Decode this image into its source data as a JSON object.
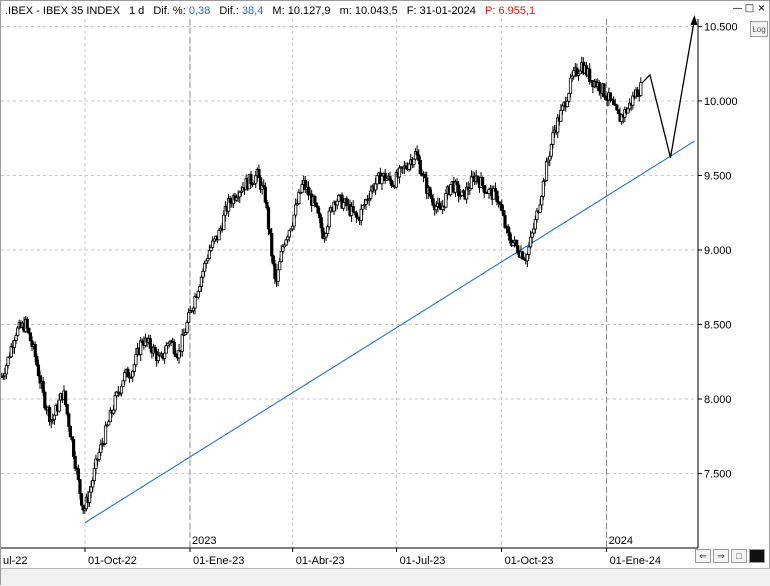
{
  "header": {
    "symbol": ".IBEX - IBEX 35 INDEX",
    "interval": "1 d",
    "dif_pct_label": "Dif. %:",
    "dif_pct_value": "0,38",
    "dif_label": "Dif.:",
    "dif_value": "38,4",
    "max_label": "M:",
    "max_value": "10.127,9",
    "min_label": "m:",
    "min_value": "10.043,5",
    "date_label": "F:",
    "date_value": "31-01-2024",
    "p_label": "P:",
    "p_value": "6.955,1"
  },
  "buttons": {
    "log_label": "Log",
    "minimize_icon": "minimize-icon",
    "maximize_icon": "maximize-icon",
    "close_icon": "close-icon"
  },
  "colors": {
    "accent_blue": "#2a6fd6",
    "trendline": "#1f6fd2",
    "price_red": "#d11a1a"
  },
  "chart_data": {
    "type": "candlestick",
    "title": ".IBEX - IBEX 35 INDEX",
    "ylim": [
      7000,
      10550
    ],
    "y_ticks": [
      "7.500",
      "8.000",
      "8.500",
      "9.000",
      "9.500",
      "10.000",
      "10.500"
    ],
    "x_tick_labels": [
      "ul-22",
      "01-Oct-22",
      "01-Ene-23",
      "01-Abr-23",
      "01-Jul-23",
      "01-Oct-23",
      "01-Ene-24"
    ],
    "year_labels": [
      "2023",
      "2024"
    ],
    "grid": true,
    "series": [
      {
        "kind": "close",
        "x": [
          "2022-07-20",
          "2022-07-25",
          "2022-08-01",
          "2022-08-10",
          "2022-08-18",
          "2022-08-26",
          "2022-09-02",
          "2022-09-12",
          "2022-09-20",
          "2022-09-26",
          "2022-09-30",
          "2022-10-06",
          "2022-10-12",
          "2022-10-20",
          "2022-10-28",
          "2022-11-04",
          "2022-11-12",
          "2022-11-20",
          "2022-11-28",
          "2022-12-06",
          "2022-12-14",
          "2022-12-22",
          "2023-01-02",
          "2023-01-10",
          "2023-01-18",
          "2023-01-26",
          "2023-02-03",
          "2023-02-12",
          "2023-02-20",
          "2023-03-01",
          "2023-03-08",
          "2023-03-14",
          "2023-03-17",
          "2023-03-24",
          "2023-04-01",
          "2023-04-10",
          "2023-04-20",
          "2023-04-28",
          "2023-05-08",
          "2023-05-18",
          "2023-05-28",
          "2023-06-08",
          "2023-06-18",
          "2023-06-28",
          "2023-07-08",
          "2023-07-18",
          "2023-07-28",
          "2023-08-08",
          "2023-08-18",
          "2023-08-28",
          "2023-09-08",
          "2023-09-18",
          "2023-09-28",
          "2023-10-06",
          "2023-10-16",
          "2023-10-23",
          "2023-10-31",
          "2023-11-08",
          "2023-11-16",
          "2023-11-24",
          "2023-12-02",
          "2023-12-10",
          "2023-12-18",
          "2023-12-26",
          "2024-01-04",
          "2024-01-12",
          "2024-01-20",
          "2024-01-26",
          "2024-01-31"
        ],
        "values": [
          8150,
          8250,
          8450,
          8500,
          8300,
          8000,
          7850,
          8050,
          7700,
          7400,
          7250,
          7400,
          7600,
          7800,
          8000,
          8150,
          8200,
          8400,
          8350,
          8250,
          8400,
          8300,
          8600,
          8800,
          9000,
          9100,
          9300,
          9400,
          9450,
          9500,
          9350,
          8950,
          8750,
          9050,
          9200,
          9450,
          9300,
          9100,
          9350,
          9300,
          9200,
          9400,
          9500,
          9450,
          9550,
          9650,
          9400,
          9250,
          9450,
          9350,
          9500,
          9400,
          9350,
          9100,
          9000,
          8950,
          9200,
          9500,
          9800,
          9950,
          10150,
          10250,
          10150,
          10100,
          10000,
          9880,
          9950,
          10050,
          10090
        ]
      },
      {
        "kind": "projection",
        "x": [
          "2024-02-01",
          "2024-02-08",
          "2024-02-26",
          "2024-03-18"
        ],
        "values": [
          10120,
          10175,
          9620,
          10550
        ]
      },
      {
        "kind": "trendline",
        "x": [
          "2022-10-01",
          "2024-03-18"
        ],
        "values": [
          7170,
          9730
        ]
      }
    ]
  }
}
